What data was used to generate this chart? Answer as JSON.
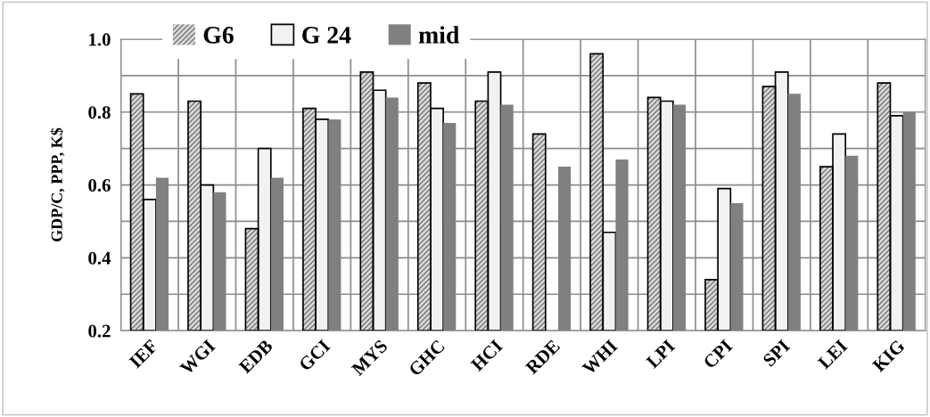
{
  "chart_data": {
    "type": "bar",
    "ylabel": "GDP/C, PPP, K$",
    "categories": [
      "IEF",
      "WGI",
      "EDB",
      "GCI",
      "MYS",
      "GHC",
      "HCI",
      "RDE",
      "WHI",
      "LPI",
      "CPI",
      "SPI",
      "LEI",
      "KIG"
    ],
    "series": [
      {
        "name": "G6",
        "color": "#d9d9d9",
        "values": [
          0.85,
          0.83,
          0.48,
          0.81,
          0.91,
          0.88,
          0.83,
          0.74,
          0.96,
          0.84,
          0.34,
          0.87,
          0.65,
          0.88
        ]
      },
      {
        "name": "G 24",
        "color": "#f2f2f2",
        "values": [
          0.56,
          0.6,
          0.7,
          0.78,
          0.86,
          0.81,
          0.91,
          null,
          0.47,
          0.83,
          0.59,
          0.91,
          0.74,
          0.79
        ]
      },
      {
        "name": "mid",
        "color": "#808080",
        "values": [
          0.62,
          0.58,
          0.62,
          0.78,
          0.84,
          0.77,
          0.82,
          0.65,
          0.67,
          0.82,
          0.55,
          0.85,
          0.68,
          0.8
        ]
      }
    ],
    "ylim": [
      0.2,
      1.0
    ],
    "yticks": [
      {
        "value": 0.2,
        "label": "0.2"
      },
      {
        "value": 0.3,
        "label": null
      },
      {
        "value": 0.4,
        "label": "0.4"
      },
      {
        "value": 0.5,
        "label": null
      },
      {
        "value": 0.6,
        "label": "0.6"
      },
      {
        "value": 0.7,
        "label": null
      },
      {
        "value": 0.8,
        "label": "0.8"
      },
      {
        "value": 0.9,
        "label": null
      },
      {
        "value": 1.0,
        "label": "1.0"
      }
    ],
    "grid": true,
    "legend": "top"
  }
}
